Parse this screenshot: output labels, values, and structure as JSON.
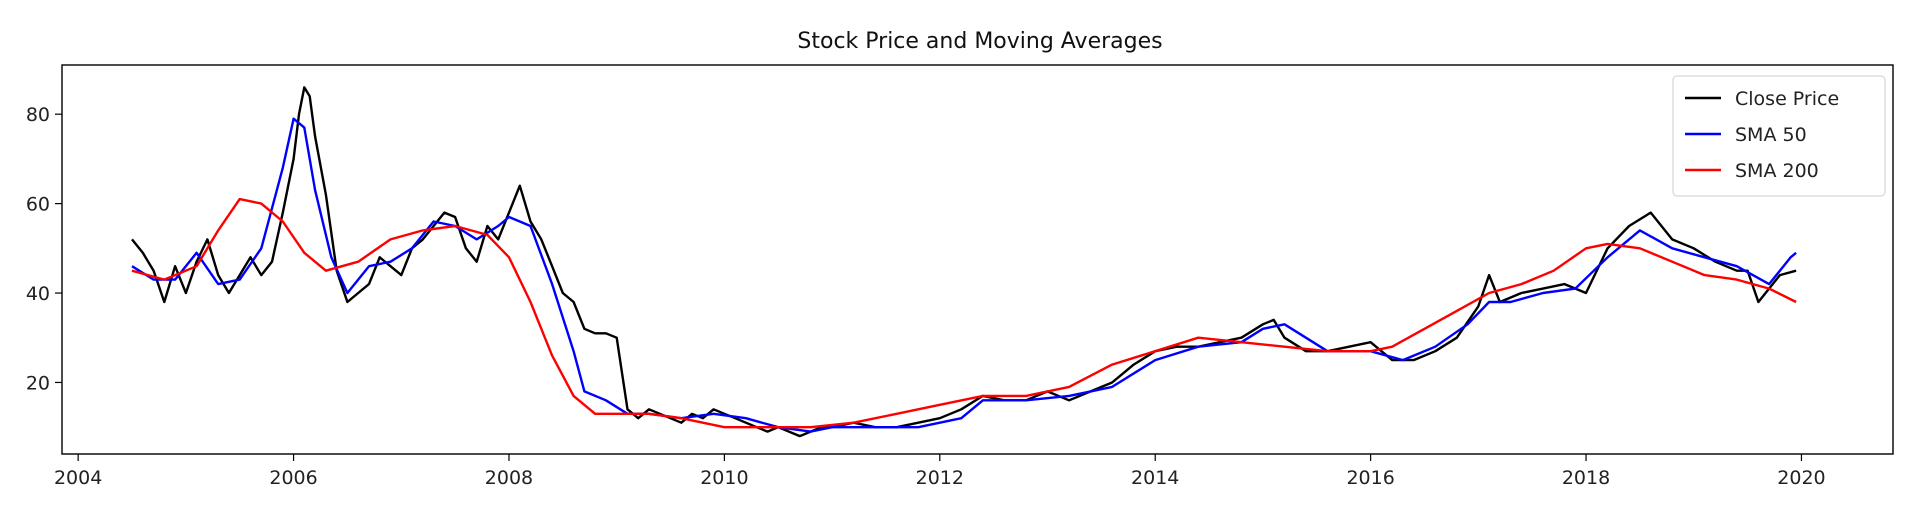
{
  "chart_data": {
    "type": "line",
    "title": "Stock Price and Moving Averages",
    "xlabel": "",
    "ylabel": "",
    "x_range": [
      2003.85,
      2020.85
    ],
    "ylim": [
      4,
      91
    ],
    "x_ticks": [
      2004,
      2006,
      2008,
      2010,
      2012,
      2014,
      2016,
      2018,
      2020
    ],
    "x_tick_labels": [
      "2004",
      "2006",
      "2008",
      "2010",
      "2012",
      "2014",
      "2016",
      "2018",
      "2020"
    ],
    "y_ticks": [
      20,
      40,
      60,
      80
    ],
    "y_tick_labels": [
      "20",
      "40",
      "60",
      "80"
    ],
    "grid": false,
    "legend_position": "top-right",
    "series": [
      {
        "name": "Close Price",
        "color": "#000000",
        "x": [
          2004.5,
          2004.6,
          2004.7,
          2004.8,
          2004.9,
          2005.0,
          2005.1,
          2005.2,
          2005.3,
          2005.4,
          2005.5,
          2005.6,
          2005.7,
          2005.8,
          2005.9,
          2006.0,
          2006.05,
          2006.1,
          2006.15,
          2006.2,
          2006.3,
          2006.4,
          2006.5,
          2006.6,
          2006.7,
          2006.8,
          2006.9,
          2007.0,
          2007.1,
          2007.2,
          2007.3,
          2007.4,
          2007.5,
          2007.6,
          2007.7,
          2007.8,
          2007.9,
          2008.0,
          2008.1,
          2008.2,
          2008.3,
          2008.4,
          2008.5,
          2008.6,
          2008.7,
          2008.8,
          2008.9,
          2009.0,
          2009.1,
          2009.2,
          2009.3,
          2009.4,
          2009.5,
          2009.6,
          2009.7,
          2009.8,
          2009.9,
          2010.0,
          2010.1,
          2010.2,
          2010.3,
          2010.4,
          2010.5,
          2010.6,
          2010.7,
          2010.8,
          2010.9,
          2011.0,
          2011.2,
          2011.4,
          2011.6,
          2011.8,
          2012.0,
          2012.2,
          2012.4,
          2012.6,
          2012.8,
          2013.0,
          2013.2,
          2013.4,
          2013.6,
          2013.8,
          2014.0,
          2014.2,
          2014.4,
          2014.6,
          2014.8,
          2015.0,
          2015.1,
          2015.2,
          2015.4,
          2015.6,
          2015.8,
          2016.0,
          2016.2,
          2016.4,
          2016.6,
          2016.8,
          2017.0,
          2017.1,
          2017.2,
          2017.4,
          2017.6,
          2017.8,
          2018.0,
          2018.2,
          2018.4,
          2018.6,
          2018.8,
          2019.0,
          2019.2,
          2019.4,
          2019.5,
          2019.6,
          2019.8,
          2019.95
        ],
        "values": [
          52,
          49,
          45,
          38,
          46,
          40,
          47,
          52,
          44,
          40,
          44,
          48,
          44,
          47,
          58,
          70,
          80,
          86,
          84,
          75,
          62,
          45,
          38,
          40,
          42,
          48,
          46,
          44,
          50,
          52,
          55,
          58,
          57,
          50,
          47,
          55,
          52,
          58,
          64,
          56,
          52,
          46,
          40,
          38,
          32,
          31,
          31,
          30,
          14,
          12,
          14,
          13,
          12,
          11,
          13,
          12,
          14,
          13,
          12,
          11,
          10,
          9,
          10,
          9,
          8,
          9,
          10,
          10,
          11,
          10,
          10,
          11,
          12,
          14,
          17,
          16,
          16,
          18,
          16,
          18,
          20,
          24,
          27,
          28,
          28,
          29,
          30,
          33,
          34,
          30,
          27,
          27,
          28,
          29,
          25,
          25,
          27,
          30,
          37,
          44,
          38,
          40,
          41,
          42,
          40,
          50,
          55,
          58,
          52,
          50,
          47,
          45,
          45,
          38,
          44,
          45
        ]
      },
      {
        "name": "SMA 50",
        "color": "#0000ff",
        "x": [
          2004.5,
          2004.7,
          2004.9,
          2005.1,
          2005.3,
          2005.5,
          2005.7,
          2005.9,
          2006.0,
          2006.1,
          2006.2,
          2006.35,
          2006.5,
          2006.7,
          2006.9,
          2007.1,
          2007.3,
          2007.5,
          2007.7,
          2007.9,
          2008.0,
          2008.2,
          2008.4,
          2008.6,
          2008.7,
          2008.9,
          2009.1,
          2009.3,
          2009.6,
          2009.9,
          2010.2,
          2010.5,
          2010.8,
          2011.0,
          2011.4,
          2011.8,
          2012.2,
          2012.4,
          2012.8,
          2013.2,
          2013.6,
          2014.0,
          2014.4,
          2014.8,
          2015.0,
          2015.2,
          2015.6,
          2016.0,
          2016.3,
          2016.6,
          2016.9,
          2017.1,
          2017.3,
          2017.6,
          2017.9,
          2018.2,
          2018.5,
          2018.8,
          2019.1,
          2019.4,
          2019.7,
          2019.9,
          2019.95
        ],
        "values": [
          46,
          43,
          43,
          49,
          42,
          43,
          50,
          68,
          79,
          77,
          63,
          48,
          40,
          46,
          47,
          50,
          56,
          55,
          52,
          55,
          57,
          55,
          42,
          27,
          18,
          16,
          13,
          13,
          12,
          13,
          12,
          10,
          9,
          10,
          10,
          10,
          12,
          16,
          16,
          17,
          19,
          25,
          28,
          29,
          32,
          33,
          27,
          27,
          25,
          28,
          33,
          38,
          38,
          40,
          41,
          48,
          54,
          50,
          48,
          46,
          42,
          48,
          49
        ]
      },
      {
        "name": "SMA 200",
        "color": "#ff0000",
        "x": [
          2004.5,
          2004.8,
          2005.1,
          2005.3,
          2005.5,
          2005.7,
          2005.9,
          2006.1,
          2006.3,
          2006.6,
          2006.9,
          2007.2,
          2007.5,
          2007.8,
          2008.0,
          2008.2,
          2008.4,
          2008.6,
          2008.8,
          2009.0,
          2009.3,
          2009.6,
          2010.0,
          2010.4,
          2010.8,
          2011.2,
          2011.6,
          2012.0,
          2012.4,
          2012.8,
          2013.2,
          2013.6,
          2014.0,
          2014.4,
          2014.8,
          2015.2,
          2015.6,
          2016.0,
          2016.2,
          2016.5,
          2016.8,
          2017.1,
          2017.4,
          2017.7,
          2018.0,
          2018.2,
          2018.5,
          2018.8,
          2019.1,
          2019.4,
          2019.7,
          2019.95
        ],
        "values": [
          45,
          43,
          46,
          54,
          61,
          60,
          56,
          49,
          45,
          47,
          52,
          54,
          55,
          53,
          48,
          38,
          26,
          17,
          13,
          13,
          13,
          12,
          10,
          10,
          10,
          11,
          13,
          15,
          17,
          17,
          19,
          24,
          27,
          30,
          29,
          28,
          27,
          27,
          28,
          32,
          36,
          40,
          42,
          45,
          50,
          51,
          50,
          47,
          44,
          43,
          41,
          38
        ]
      }
    ]
  }
}
